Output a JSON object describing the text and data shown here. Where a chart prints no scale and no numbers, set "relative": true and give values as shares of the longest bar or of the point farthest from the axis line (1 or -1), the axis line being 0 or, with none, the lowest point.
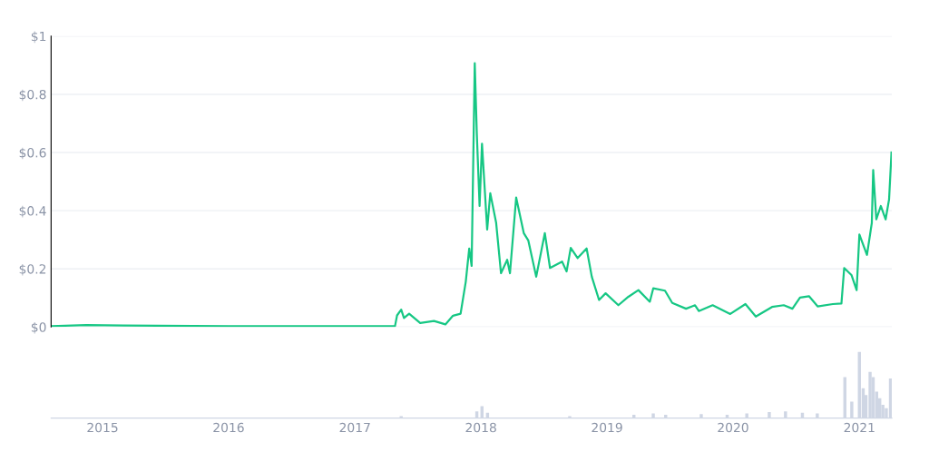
{
  "chart_data": [
    {
      "type": "line",
      "tick_labels": "y",
      "grid": "y",
      "xlim": [
        "2014-08-05",
        "2021-04-05"
      ],
      "ylim": [
        0,
        1
      ],
      "yticks": [
        {
          "value": 0,
          "label": "$0"
        },
        {
          "value": 0.2,
          "label": "$0.2"
        },
        {
          "value": 0.4,
          "label": "$0.4"
        },
        {
          "value": 0.6,
          "label": "$0.6"
        },
        {
          "value": 0.8,
          "label": "$0.8"
        },
        {
          "value": 1,
          "label": "$1"
        }
      ],
      "series": [
        {
          "color": "#16c784",
          "x": [
            "2014-08-05",
            "2014-11-15",
            "2015-03-01",
            "2016-01-01",
            "2017-01-01",
            "2017-03-22",
            "2017-04-27",
            "2017-05-03",
            "2017-05-15",
            "2017-05-23",
            "2017-06-07",
            "2017-07-09",
            "2017-08-18",
            "2017-09-20",
            "2017-10-12",
            "2017-11-03",
            "2017-11-18",
            "2017-11-28",
            "2017-12-05",
            "2017-12-14",
            "2017-12-20",
            "2017-12-28",
            "2018-01-04",
            "2018-01-19",
            "2018-01-28",
            "2018-02-14",
            "2018-02-28",
            "2018-03-18",
            "2018-03-26",
            "2018-04-13",
            "2018-05-05",
            "2018-05-18",
            "2018-06-10",
            "2018-07-05",
            "2018-07-20",
            "2018-08-24",
            "2018-09-06",
            "2018-09-18",
            "2018-10-08",
            "2018-11-03",
            "2018-11-18",
            "2018-12-09",
            "2018-12-28",
            "2019-02-03",
            "2019-03-04",
            "2019-04-02",
            "2019-05-05",
            "2019-05-15",
            "2019-06-18",
            "2019-07-09",
            "2019-08-18",
            "2019-09-13",
            "2019-09-24",
            "2019-11-03",
            "2019-12-24",
            "2020-02-06",
            "2020-03-07",
            "2020-04-23",
            "2020-05-27",
            "2020-06-21",
            "2020-07-13",
            "2020-08-08",
            "2020-09-02",
            "2020-10-16",
            "2020-11-10",
            "2020-11-18",
            "2020-12-09",
            "2020-12-24",
            "2021-01-01",
            "2021-01-23",
            "2021-02-06",
            "2021-02-10",
            "2021-02-19",
            "2021-03-04",
            "2021-03-18",
            "2021-03-28",
            "2021-04-04"
          ],
          "values": [
            0.003,
            0.007,
            0.005,
            0.003,
            0.003,
            0.003,
            0.003,
            0.04,
            0.06,
            0.031,
            0.046,
            0.014,
            0.021,
            0.009,
            0.039,
            0.046,
            0.156,
            0.27,
            0.21,
            0.907,
            0.664,
            0.416,
            0.63,
            0.335,
            0.46,
            0.358,
            0.185,
            0.231,
            0.185,
            0.445,
            0.323,
            0.298,
            0.173,
            0.323,
            0.203,
            0.225,
            0.191,
            0.272,
            0.237,
            0.27,
            0.173,
            0.093,
            0.116,
            0.075,
            0.104,
            0.127,
            0.087,
            0.133,
            0.125,
            0.083,
            0.063,
            0.075,
            0.055,
            0.075,
            0.045,
            0.079,
            0.036,
            0.069,
            0.075,
            0.063,
            0.101,
            0.106,
            0.071,
            0.079,
            0.081,
            0.203,
            0.179,
            0.127,
            0.318,
            0.248,
            0.358,
            0.54,
            0.37,
            0.416,
            0.37,
            0.439,
            0.6
          ]
        }
      ]
    },
    {
      "type": "bar",
      "relative": true,
      "tick_labels": "x",
      "xlim": [
        "2014-08-05",
        "2021-04-05"
      ],
      "xticks": [
        {
          "value": "2015-01-01",
          "label": "2015"
        },
        {
          "value": "2016-01-01",
          "label": "2016"
        },
        {
          "value": "2017-01-01",
          "label": "2017"
        },
        {
          "value": "2018-01-01",
          "label": "2018"
        },
        {
          "value": "2019-01-01",
          "label": "2019"
        },
        {
          "value": "2020-01-01",
          "label": "2020"
        },
        {
          "value": "2021-01-01",
          "label": "2021"
        }
      ],
      "series": [
        {
          "color": "#cfd6e4",
          "x": [
            "2017-05-15",
            "2017-12-20",
            "2018-01-04",
            "2018-01-20",
            "2018-09-15",
            "2019-03-20",
            "2019-05-15",
            "2019-06-20",
            "2019-10-01",
            "2019-12-15",
            "2020-02-10",
            "2020-04-15",
            "2020-06-01",
            "2020-07-20",
            "2020-09-01",
            "2020-11-20",
            "2020-12-10",
            "2021-01-01",
            "2021-01-12",
            "2021-01-20",
            "2021-02-01",
            "2021-02-10",
            "2021-02-20",
            "2021-03-01",
            "2021-03-10",
            "2021-03-20",
            "2021-04-01"
          ],
          "values": [
            0.03,
            0.1,
            0.18,
            0.08,
            0.03,
            0.05,
            0.07,
            0.05,
            0.06,
            0.05,
            0.07,
            0.09,
            0.1,
            0.08,
            0.07,
            0.62,
            0.25,
            1,
            0.45,
            0.35,
            0.7,
            0.62,
            0.4,
            0.3,
            0.2,
            0.15,
            0.6
          ]
        }
      ]
    }
  ]
}
